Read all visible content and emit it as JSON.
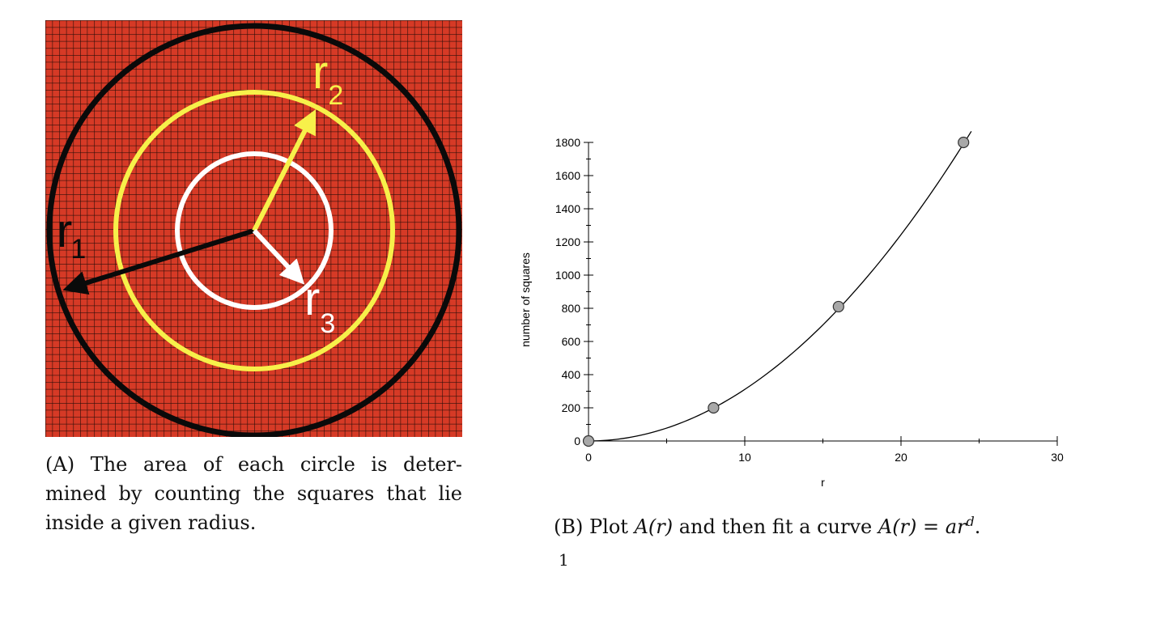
{
  "figure_a": {
    "labels": {
      "r1": {
        "base": "r",
        "sub": "1"
      },
      "r2": {
        "base": "r",
        "sub": "2"
      },
      "r3": {
        "base": "r",
        "sub": "3"
      }
    },
    "colors": {
      "background": "#d63a26",
      "grid": "#2a0d08",
      "outer_circle": "#0a0a0a",
      "middle_circle": "#f7f04a",
      "inner_circle": "#ffffff"
    }
  },
  "caption_a": {
    "tag": "(A)",
    "line1": "The area of each circle is deter-",
    "line2": "mined by counting the squares that lie",
    "line3": "inside a given radius."
  },
  "caption_b": {
    "tag": "(B)",
    "before": "Plot ",
    "math1": "A(r)",
    "middle": " and then fit a curve ",
    "math2": "A(r) = ar",
    "sup": "d",
    "after": "."
  },
  "page_number": "1",
  "chart_data": {
    "type": "scatter",
    "xlabel": "r",
    "ylabel": "number of squares",
    "xlim": [
      0,
      30
    ],
    "ylim": [
      0,
      1800
    ],
    "x_ticks": [
      0,
      10,
      20,
      30
    ],
    "y_ticks": [
      0,
      200,
      400,
      600,
      800,
      1000,
      1200,
      1400,
      1600,
      1800
    ],
    "points": [
      {
        "x": 0,
        "y": 0
      },
      {
        "x": 8,
        "y": 200
      },
      {
        "x": 16,
        "y": 810
      },
      {
        "x": 24,
        "y": 1800
      }
    ],
    "fit": {
      "a": 3.11,
      "d": 2.0,
      "x_max": 24.5
    },
    "grid": false,
    "legend": "none",
    "colors": {
      "marker_fill": "#a8a8a8",
      "marker_stroke": "#333333",
      "line": "#000000"
    }
  }
}
